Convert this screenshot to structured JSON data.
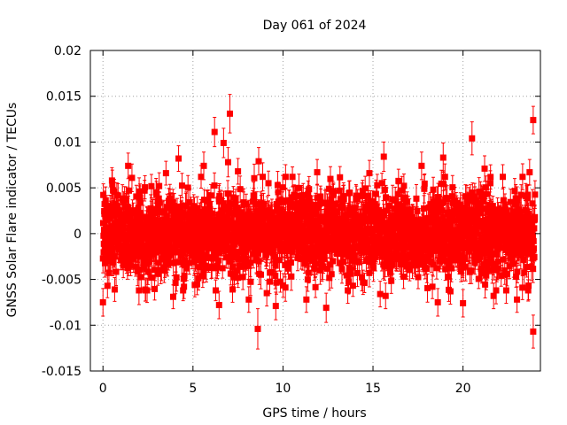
{
  "chart_data": {
    "type": "scatter",
    "title": "Day 061 of 2024",
    "xlabel": "GPS time / hours",
    "ylabel": "GNSS Solar Flare indicator / TECUs",
    "xlim": [
      -0.7,
      24.3
    ],
    "ylim": [
      -0.015,
      0.02
    ],
    "xticks": [
      0,
      5,
      10,
      15,
      20
    ],
    "xtick_labels": [
      "0",
      "5",
      "10",
      "15",
      "20"
    ],
    "yticks": [
      -0.015,
      -0.01,
      -0.005,
      0,
      0.005,
      0.01,
      0.015,
      0.02
    ],
    "ytick_labels": [
      "-0.015",
      "-0.01",
      "-0.005",
      "0",
      "0.005",
      "0.01",
      "0.015",
      "0.02"
    ],
    "grid": true,
    "legend": "none",
    "marker": "square",
    "error_bars": true,
    "series": [
      {
        "name": "GNSS Solar Flare indicator",
        "color": "#ff0000",
        "points_description": "dense band of points every ~30 s covering 0-24 h, typical spread about +/-0.004 TECU with 1-sigma errors ~0.0015",
        "noise_std": 0.0022,
        "error_mean": 0.0013,
        "start_hour": 0.0,
        "end_hour": 24.0,
        "n_points": 2400,
        "outliers": [
          {
            "x": 0.0,
            "y": -0.0075,
            "err": 0.0015
          },
          {
            "x": 0.25,
            "y": -0.0057,
            "err": 0.0013
          },
          {
            "x": 0.5,
            "y": 0.0058,
            "err": 0.0014
          },
          {
            "x": 0.65,
            "y": -0.0061,
            "err": 0.0013
          },
          {
            "x": 1.4,
            "y": 0.0074,
            "err": 0.0014
          },
          {
            "x": 2.7,
            "y": -0.0048,
            "err": 0.0013
          },
          {
            "x": 3.5,
            "y": 0.0066,
            "err": 0.0013
          },
          {
            "x": 3.9,
            "y": -0.0069,
            "err": 0.0013
          },
          {
            "x": 4.2,
            "y": 0.0082,
            "err": 0.0014
          },
          {
            "x": 4.5,
            "y": -0.0058,
            "err": 0.0013
          },
          {
            "x": 5.1,
            "y": -0.0056,
            "err": 0.0013
          },
          {
            "x": 5.6,
            "y": 0.0074,
            "err": 0.0015
          },
          {
            "x": 6.2,
            "y": 0.0111,
            "err": 0.0016
          },
          {
            "x": 6.45,
            "y": -0.0078,
            "err": 0.0015
          },
          {
            "x": 6.7,
            "y": 0.0099,
            "err": 0.0016
          },
          {
            "x": 6.95,
            "y": 0.0078,
            "err": 0.0016
          },
          {
            "x": 7.05,
            "y": 0.0131,
            "err": 0.0021
          },
          {
            "x": 7.2,
            "y": -0.0061,
            "err": 0.0014
          },
          {
            "x": 7.5,
            "y": 0.0068,
            "err": 0.0014
          },
          {
            "x": 8.1,
            "y": -0.0072,
            "err": 0.0014
          },
          {
            "x": 8.6,
            "y": -0.0104,
            "err": 0.0022
          },
          {
            "x": 8.65,
            "y": 0.0079,
            "err": 0.0015
          },
          {
            "x": 9.1,
            "y": -0.0065,
            "err": 0.0014
          },
          {
            "x": 9.6,
            "y": -0.0079,
            "err": 0.0015
          },
          {
            "x": 11.3,
            "y": -0.0072,
            "err": 0.0014
          },
          {
            "x": 11.9,
            "y": 0.0067,
            "err": 0.0014
          },
          {
            "x": 12.4,
            "y": -0.0081,
            "err": 0.0016
          },
          {
            "x": 13.6,
            "y": -0.0062,
            "err": 0.0014
          },
          {
            "x": 14.8,
            "y": 0.0066,
            "err": 0.0014
          },
          {
            "x": 15.4,
            "y": -0.0066,
            "err": 0.0014
          },
          {
            "x": 15.6,
            "y": 0.0084,
            "err": 0.0016
          },
          {
            "x": 15.7,
            "y": -0.0068,
            "err": 0.0014
          },
          {
            "x": 16.7,
            "y": -0.0047,
            "err": 0.0013
          },
          {
            "x": 17.7,
            "y": 0.0074,
            "err": 0.0015
          },
          {
            "x": 18.3,
            "y": -0.0058,
            "err": 0.0013
          },
          {
            "x": 18.6,
            "y": -0.0075,
            "err": 0.0015
          },
          {
            "x": 18.9,
            "y": 0.0083,
            "err": 0.0016
          },
          {
            "x": 19.3,
            "y": -0.0063,
            "err": 0.0014
          },
          {
            "x": 20.0,
            "y": -0.0076,
            "err": 0.0015
          },
          {
            "x": 20.5,
            "y": 0.0104,
            "err": 0.0018
          },
          {
            "x": 21.2,
            "y": 0.0071,
            "err": 0.0014
          },
          {
            "x": 21.7,
            "y": -0.0068,
            "err": 0.0014
          },
          {
            "x": 22.4,
            "y": -0.0062,
            "err": 0.0014
          },
          {
            "x": 23.0,
            "y": -0.0072,
            "err": 0.0014
          },
          {
            "x": 23.3,
            "y": -0.0059,
            "err": 0.0013
          },
          {
            "x": 23.7,
            "y": 0.0067,
            "err": 0.0014
          },
          {
            "x": 23.9,
            "y": 0.0124,
            "err": 0.0015
          },
          {
            "x": 23.9,
            "y": -0.0107,
            "err": 0.0018
          }
        ]
      }
    ]
  }
}
